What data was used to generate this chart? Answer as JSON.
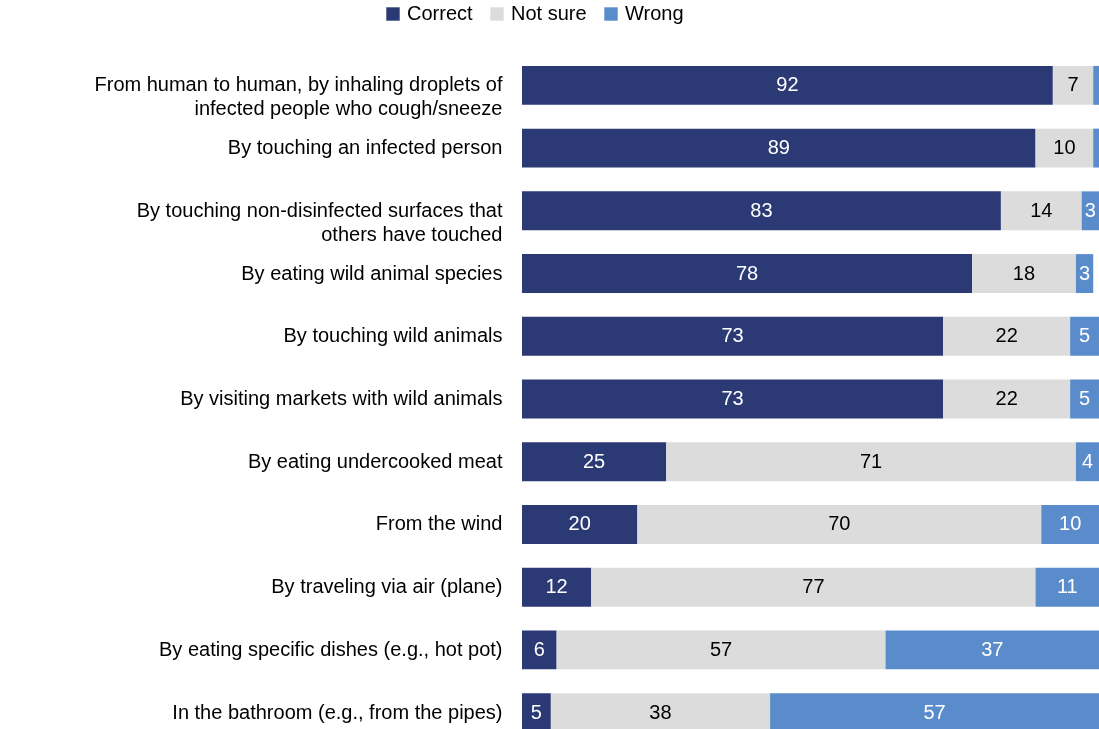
{
  "chart_data": {
    "type": "bar",
    "orientation": "horizontal",
    "stacked": true,
    "legend": "top",
    "categories": [
      "From human to human, by inhaling droplets of infected people who cough/sneeze",
      "By touching an infected person",
      "By touching non-disinfected surfaces that others have touched",
      "By eating wild animal species",
      "By touching wild animals",
      "By visiting markets with wild animals",
      "By eating undercooked meat",
      "From the wind",
      "By traveling via air (plane)",
      "By eating specific dishes (e.g., hot pot)",
      "In the bathroom (e.g., from the pipes)"
    ],
    "series": [
      {
        "name": "Correct",
        "color": "#2b3a75",
        "values": [
          92,
          89,
          83,
          78,
          73,
          73,
          25,
          20,
          12,
          6,
          5
        ],
        "value_labels": [
          "92",
          "89",
          "83",
          "78",
          "73",
          "73",
          "25",
          "20",
          "12",
          "6",
          "5"
        ]
      },
      {
        "name": "Not sure",
        "color": "#dcdcdc",
        "values": [
          7,
          10,
          14,
          18,
          22,
          22,
          71,
          70,
          77,
          57,
          38
        ],
        "value_labels": [
          "7",
          "10",
          "14",
          "18",
          "22",
          "22",
          "71",
          "70",
          "77",
          "57",
          "38"
        ]
      },
      {
        "name": "Wrong",
        "color": "#5a8ccc",
        "values": [
          1,
          1,
          3,
          3,
          5,
          5,
          4,
          10,
          11,
          37,
          57
        ],
        "value_labels": [
          null,
          null,
          "3",
          "3",
          "5",
          "5",
          "4",
          "10",
          "11",
          "37",
          "57"
        ]
      }
    ]
  }
}
